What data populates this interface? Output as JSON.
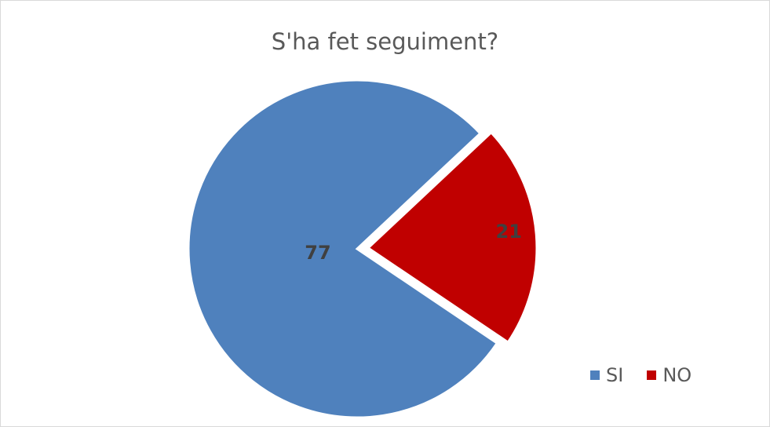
{
  "chart_data": {
    "type": "pie",
    "title": "S'ha fet seguiment?",
    "categories": [
      "SI",
      "NO"
    ],
    "values": [
      77,
      21
    ],
    "colors": [
      "#4f81bd",
      "#c00000"
    ],
    "exploded": [
      "NO"
    ],
    "legend_position": "bottom-right",
    "data_labels": [
      "77",
      "21"
    ]
  }
}
